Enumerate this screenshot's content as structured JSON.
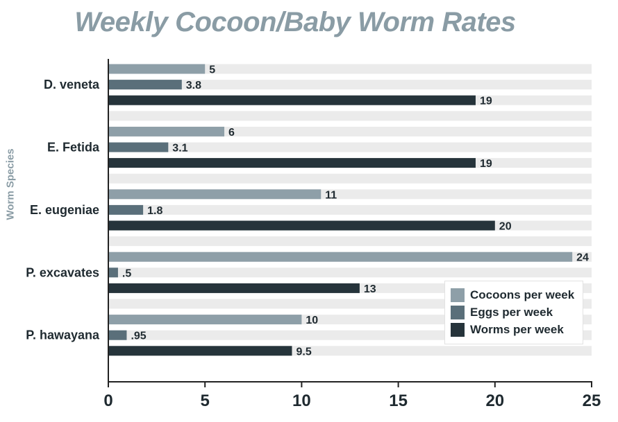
{
  "title": "Weekly Cocoon/Baby Worm Rates",
  "colors": {
    "cocoons": "#8e9fa8",
    "eggs": "#5a6f7a",
    "worms": "#26343b",
    "track": "#ebebeb",
    "title": "#8a9ca5",
    "text": "#1f2a30"
  },
  "chart_data": {
    "type": "bar",
    "orientation": "horizontal",
    "title": "Weekly Cocoon/Baby Worm Rates",
    "ylabel": "Worm Species",
    "xlabel": "",
    "xlim": [
      0,
      25
    ],
    "xticks": [
      "0",
      "5",
      "10",
      "15",
      "20",
      "25"
    ],
    "categories": [
      "D. veneta",
      "E. Fetida",
      "E. eugeniae",
      "P. excavates",
      "P. hawayana"
    ],
    "series": [
      {
        "name": "Cocoons per week",
        "values": [
          5,
          6,
          11,
          24,
          10
        ],
        "labels": [
          "5",
          "6",
          "11",
          "24",
          "10"
        ]
      },
      {
        "name": "Eggs per week",
        "values": [
          3.8,
          3.1,
          1.8,
          0.5,
          0.95
        ],
        "labels": [
          "3.8",
          "3.1",
          "1.8",
          ".5",
          ".95"
        ]
      },
      {
        "name": "Worms per week",
        "values": [
          19,
          19,
          20,
          13,
          9.5
        ],
        "labels": [
          "19",
          "19",
          "20",
          "13",
          "9.5"
        ]
      }
    ],
    "legend_position": "bottom-right",
    "grid": false
  }
}
